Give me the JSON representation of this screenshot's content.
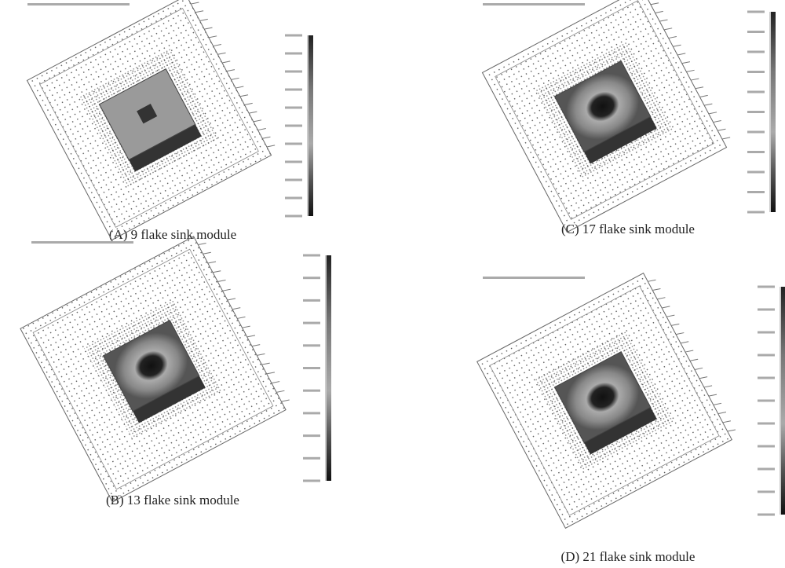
{
  "figure": {
    "panels": [
      {
        "caption": "(A) 9 flake sink module"
      },
      {
        "caption": "(B) 13 flake sink module"
      },
      {
        "caption": "(C) 17 flake sink module"
      },
      {
        "caption": "(D) 21 flake sink module"
      }
    ]
  }
}
